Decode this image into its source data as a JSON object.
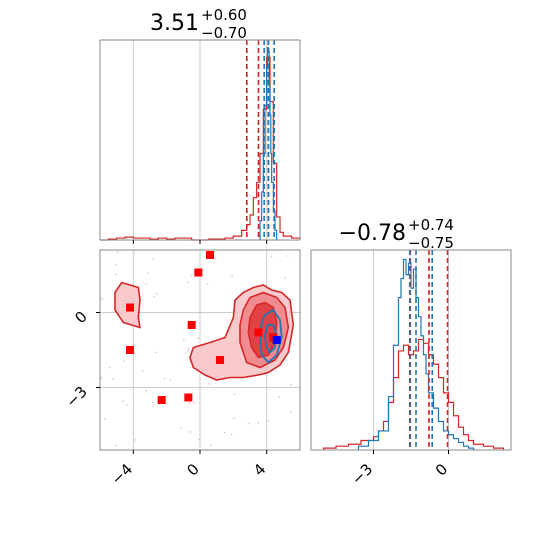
{
  "chart_data": [
    {
      "type": "histogram",
      "panel": "marginal-x",
      "title": {
        "value": "3.51",
        "plus": "+0.60",
        "minus": "−0.70"
      },
      "xlim": [
        -6,
        6
      ],
      "ylim": [
        0,
        1.04
      ],
      "grid": true,
      "series": [
        {
          "color": "#d62728",
          "step_x": [
            -6,
            -5.5,
            -5,
            -4.5,
            -4,
            -3.5,
            -3,
            -2.5,
            -2,
            -1.5,
            -1,
            -0.5,
            0,
            0.5,
            1,
            1.5,
            2,
            2.5,
            2.8,
            3.0,
            3.2,
            3.4,
            3.6,
            3.8,
            4.0,
            4.2,
            4.4,
            4.6,
            4.8,
            5.0,
            5.5,
            6
          ],
          "step_y": [
            0,
            0.005,
            0.01,
            0.015,
            0.01,
            0.01,
            0.005,
            0.01,
            0.005,
            0.01,
            0.01,
            0,
            0,
            0.005,
            0.005,
            0.01,
            0.02,
            0.05,
            0.08,
            0.13,
            0.22,
            0.3,
            0.45,
            0.68,
            0.95,
            0.72,
            0.4,
            0.12,
            0.04,
            0.02,
            0.01,
            0
          ]
        },
        {
          "color": "#1f77b4",
          "step_x": [
            3.6,
            3.7,
            3.8,
            3.9,
            4.0,
            4.05,
            4.1,
            4.15,
            4.2,
            4.25,
            4.3,
            4.4,
            4.5,
            4.6,
            4.7
          ],
          "step_y": [
            0.1,
            0.25,
            0.45,
            0.7,
            0.9,
            1.0,
            0.98,
            0.8,
            0.65,
            0.45,
            0.3,
            0.15,
            0.05,
            0.0,
            0.0
          ]
        }
      ],
      "quantile_lines": [
        {
          "x": 2.81,
          "color": "#d62728"
        },
        {
          "x": 3.51,
          "color": "#d62728"
        },
        {
          "x": 4.11,
          "color": "#d62728"
        },
        {
          "x": 3.85,
          "color": "#1f77b4"
        },
        {
          "x": 4.1,
          "color": "#1f77b4"
        },
        {
          "x": 4.45,
          "color": "#1f77b4"
        }
      ]
    },
    {
      "type": "contour-scatter",
      "panel": "joint",
      "xlim": [
        -6,
        6
      ],
      "ylim": [
        -5.5,
        2.5
      ],
      "grid": true,
      "x_ticks": [
        -4,
        0,
        4
      ],
      "y_ticks": [
        0,
        -3
      ],
      "red_contours": [
        {
          "fill": "#f7c4c6",
          "points": [
            [
              -5.1,
              0.8
            ],
            [
              -4.7,
              1.2
            ],
            [
              -4.2,
              1.1
            ],
            [
              -3.7,
              1.0
            ],
            [
              -3.6,
              0.5
            ],
            [
              -3.7,
              -0.2
            ],
            [
              -3.6,
              -0.6
            ],
            [
              -4.1,
              -0.5
            ],
            [
              -4.6,
              -0.4
            ],
            [
              -5.1,
              0.1
            ]
          ]
        },
        {
          "fill": "#f7c4c6",
          "points": [
            [
              -0.4,
              -1.4
            ],
            [
              0.6,
              -1.2
            ],
            [
              1.5,
              -1.0
            ],
            [
              2.0,
              -0.2
            ],
            [
              2.1,
              0.5
            ],
            [
              2.6,
              0.8
            ],
            [
              3.2,
              1.0
            ],
            [
              3.8,
              1.1
            ],
            [
              4.3,
              0.9
            ],
            [
              4.9,
              0.8
            ],
            [
              5.4,
              0.5
            ],
            [
              5.6,
              -0.5
            ],
            [
              5.3,
              -1.6
            ],
            [
              4.8,
              -2.1
            ],
            [
              4.1,
              -2.4
            ],
            [
              3.5,
              -2.5
            ],
            [
              2.6,
              -2.6
            ],
            [
              1.8,
              -2.6
            ],
            [
              1.0,
              -2.7
            ],
            [
              0.3,
              -2.5
            ],
            [
              -0.4,
              -2.2
            ],
            [
              -0.6,
              -1.8
            ]
          ]
        },
        {
          "fill": "#ee8588",
          "points": [
            [
              2.6,
              0.1
            ],
            [
              3.0,
              0.6
            ],
            [
              3.8,
              0.8
            ],
            [
              4.6,
              0.6
            ],
            [
              5.1,
              0.2
            ],
            [
              5.3,
              -0.6
            ],
            [
              5.0,
              -1.4
            ],
            [
              4.5,
              -1.9
            ],
            [
              3.6,
              -2.2
            ],
            [
              2.8,
              -2.0
            ],
            [
              2.4,
              -1.2
            ],
            [
              2.4,
              -0.5
            ]
          ]
        },
        {
          "fill": "#df3a3e",
          "points": [
            [
              3.0,
              -0.2
            ],
            [
              3.4,
              0.3
            ],
            [
              3.9,
              0.4
            ],
            [
              4.4,
              0.2
            ],
            [
              4.6,
              -0.4
            ],
            [
              4.5,
              -1.2
            ],
            [
              4.1,
              -1.7
            ],
            [
              3.5,
              -1.8
            ],
            [
              3.1,
              -1.4
            ],
            [
              2.9,
              -0.8
            ]
          ]
        }
      ],
      "blue_contours": [
        {
          "points": [
            [
              3.9,
              -0.1
            ],
            [
              4.4,
              0.1
            ],
            [
              4.8,
              -0.3
            ],
            [
              4.9,
              -1.0
            ],
            [
              4.6,
              -1.7
            ],
            [
              4.1,
              -2.0
            ],
            [
              3.7,
              -1.7
            ],
            [
              3.6,
              -1.0
            ],
            [
              3.7,
              -0.4
            ]
          ]
        },
        {
          "points": [
            [
              4.05,
              -0.5
            ],
            [
              4.4,
              -0.5
            ],
            [
              4.6,
              -0.9
            ],
            [
              4.5,
              -1.4
            ],
            [
              4.2,
              -1.6
            ],
            [
              3.95,
              -1.3
            ],
            [
              3.9,
              -0.9
            ]
          ]
        }
      ],
      "markers": [
        {
          "x": 0.6,
          "y": 2.3,
          "color": "#ff0000"
        },
        {
          "x": -0.1,
          "y": 1.6,
          "color": "#ff0000"
        },
        {
          "x": -4.2,
          "y": 0.2,
          "color": "#ff0000"
        },
        {
          "x": -0.5,
          "y": -0.5,
          "color": "#ff0000"
        },
        {
          "x": -4.2,
          "y": -1.5,
          "color": "#ff0000"
        },
        {
          "x": 1.2,
          "y": -1.9,
          "color": "#ff0000"
        },
        {
          "x": -2.3,
          "y": -3.5,
          "color": "#ff0000"
        },
        {
          "x": -0.7,
          "y": -3.4,
          "color": "#ff0000"
        },
        {
          "x": 3.5,
          "y": -0.8,
          "color": "#ff0000"
        },
        {
          "x": 4.4,
          "y": -1.0,
          "color": "#ff0000"
        },
        {
          "x": 4.6,
          "y": -1.1,
          "color": "#0000ff"
        }
      ]
    },
    {
      "type": "histogram",
      "panel": "marginal-y",
      "title": {
        "value": "−0.78",
        "plus": "+0.74",
        "minus": "−0.75"
      },
      "xlim": [
        -5.5,
        2.5
      ],
      "ylim": [
        0,
        1.05
      ],
      "grid": true,
      "x_ticks": [
        -3,
        0
      ],
      "series": [
        {
          "color": "#d62728",
          "step_x": [
            -5,
            -4.5,
            -4,
            -3.5,
            -3,
            -2.8,
            -2.6,
            -2.4,
            -2.2,
            -2.0,
            -1.8,
            -1.6,
            -1.4,
            -1.2,
            -1.0,
            -0.8,
            -0.6,
            -0.4,
            -0.2,
            0.0,
            0.2,
            0.4,
            0.6,
            0.8,
            1.0,
            1.4,
            1.8,
            2.2
          ],
          "step_y": [
            0.01,
            0.02,
            0.03,
            0.05,
            0.07,
            0.1,
            0.15,
            0.25,
            0.38,
            0.52,
            0.55,
            0.5,
            0.52,
            0.58,
            0.56,
            0.5,
            0.45,
            0.38,
            0.3,
            0.25,
            0.18,
            0.12,
            0.08,
            0.05,
            0.03,
            0.02,
            0.01,
            0
          ]
        },
        {
          "color": "#1f77b4",
          "step_x": [
            -3.6,
            -3.2,
            -2.8,
            -2.4,
            -2.2,
            -2.0,
            -1.9,
            -1.8,
            -1.7,
            -1.6,
            -1.5,
            -1.4,
            -1.3,
            -1.2,
            -1.1,
            -1.0,
            -0.9,
            -0.8,
            -0.6,
            -0.4,
            -0.2,
            0.0,
            0.2,
            0.4,
            0.6,
            0.8,
            1.0
          ],
          "step_y": [
            0.02,
            0.05,
            0.1,
            0.28,
            0.55,
            0.8,
            0.9,
            1.0,
            0.92,
            0.98,
            0.85,
            0.95,
            0.8,
            0.7,
            0.6,
            0.5,
            0.4,
            0.3,
            0.22,
            0.15,
            0.1,
            0.08,
            0.06,
            0.04,
            0.02,
            0.01,
            0
          ]
        }
      ],
      "quantile_lines": [
        {
          "x": -1.53,
          "color": "#d62728"
        },
        {
          "x": -0.78,
          "color": "#d62728"
        },
        {
          "x": -0.04,
          "color": "#d62728"
        },
        {
          "x": -1.55,
          "color": "#1f77b4"
        },
        {
          "x": -1.3,
          "color": "#1f77b4"
        },
        {
          "x": -0.65,
          "color": "#1f77b4"
        }
      ]
    }
  ]
}
